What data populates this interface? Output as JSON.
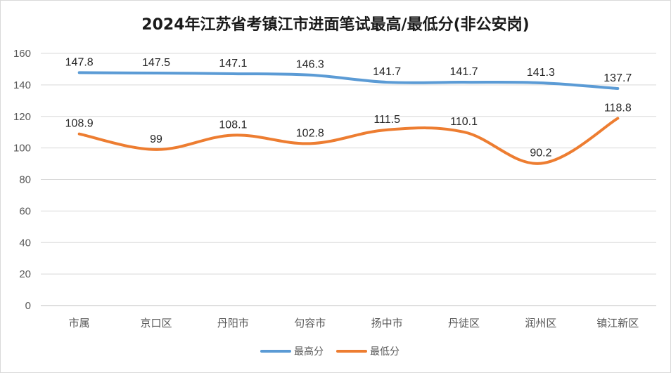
{
  "chart_data": {
    "type": "line",
    "title": "2024年江苏省考镇江市进面笔试最高/最低分(非公安岗)",
    "categories": [
      "市属",
      "京口区",
      "丹阳市",
      "句容市",
      "扬中市",
      "丹徒区",
      "润州区",
      "镇江新区"
    ],
    "series": [
      {
        "name": "最高分",
        "values": [
          147.8,
          147.5,
          147.1,
          146.3,
          141.7,
          141.7,
          141.3,
          137.7
        ],
        "labels": [
          "147.8",
          "147.5",
          "147.1",
          "146.3",
          "141.7",
          "141.7",
          "141.3",
          "137.7"
        ],
        "color": "#5b9bd5"
      },
      {
        "name": "最低分",
        "values": [
          108.9,
          99,
          108.1,
          102.8,
          111.5,
          110.1,
          90.2,
          118.8
        ],
        "labels": [
          "108.9",
          "99",
          "108.1",
          "102.8",
          "111.5",
          "110.1",
          "90.2",
          "118.8"
        ],
        "color": "#ed7d31"
      }
    ],
    "ylim": [
      0,
      160
    ],
    "yticks": [
      "0",
      "20",
      "40",
      "60",
      "80",
      "100",
      "120",
      "140",
      "160"
    ],
    "grid": true,
    "legend": "bottom"
  }
}
